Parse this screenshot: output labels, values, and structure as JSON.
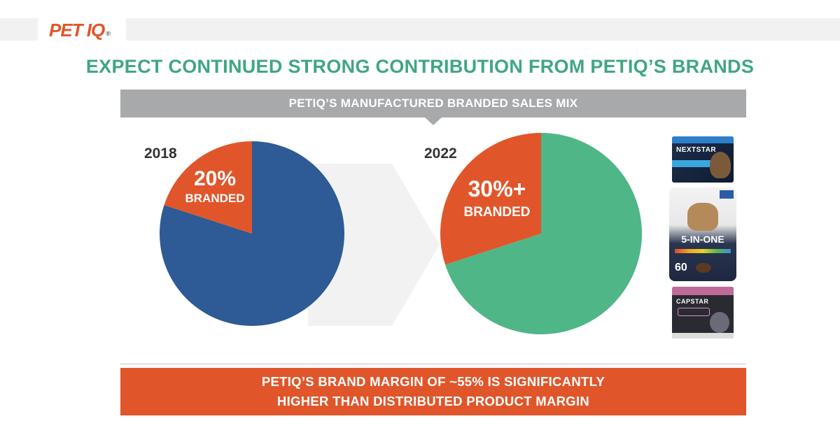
{
  "logo": {
    "text": "PET IQ",
    "registered": "®"
  },
  "title": "EXPECT CONTINUED STRONG CONTRIBUTION FROM PETIQ’S BRANDS",
  "banner": "PETIQ’S MANUFACTURED BRANDED SALES MIX",
  "colors": {
    "branded": "#e0562a",
    "other_2018": "#2e5a95",
    "other_2022": "#4fb688",
    "title": "#3fa684",
    "banner": "#a8a9ab",
    "arrow": "#f2f2f2"
  },
  "chart_data": [
    {
      "type": "pie",
      "title": "2018",
      "slices": [
        {
          "label": "BRANDED",
          "value": 20,
          "value_label": "20%"
        },
        {
          "label": "",
          "value": 80
        }
      ]
    },
    {
      "type": "pie",
      "title": "2022",
      "slices": [
        {
          "label": "BRANDED",
          "value": 30,
          "value_label": "30%+"
        },
        {
          "label": "",
          "value": 70
        }
      ]
    }
  ],
  "products": [
    {
      "name": "NEXTSTAR",
      "icon": "nextstar-product-box"
    },
    {
      "name": "5-IN-ONE",
      "count": "60",
      "icon": "five-in-one-product-bag"
    },
    {
      "name": "CAPSTAR",
      "icon": "capstar-product-box"
    }
  ],
  "bottom_banner": {
    "line1": "PETIQ’S BRAND MARGIN OF ~55% IS SIGNIFICANTLY",
    "line2": "HIGHER THAN DISTRIBUTED PRODUCT MARGIN"
  }
}
